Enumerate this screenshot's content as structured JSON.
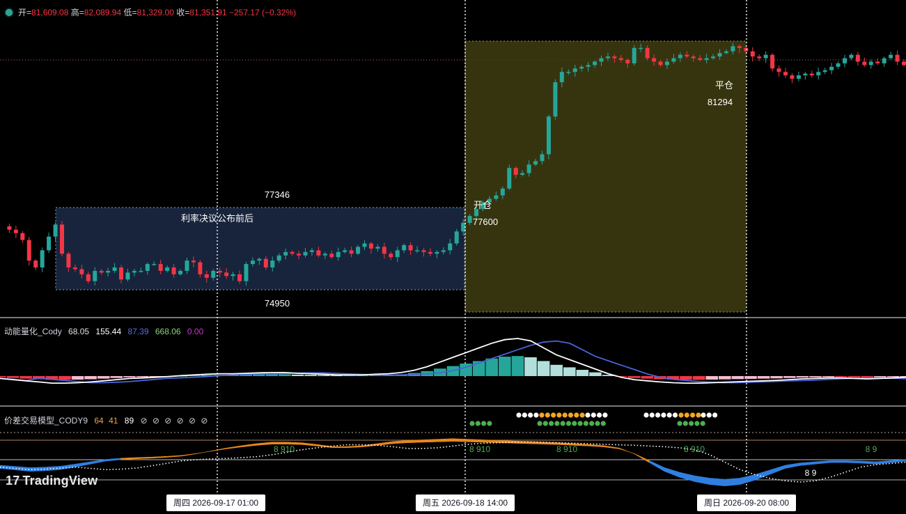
{
  "header": {
    "open_label": "开=",
    "open": "81,609.08",
    "high_label": "高=",
    "high": "82,089.94",
    "low_label": "低=",
    "low": "81,329.00",
    "close_label": "收=",
    "close": "81,351.91",
    "change": "−257.17 (−0.32%)"
  },
  "annotations": {
    "zone_top": "77346",
    "zone_title": "利率决议公布前后",
    "zone_bottom": "74950",
    "open_pos_label": "开仓",
    "open_pos_price": "77600",
    "close_pos_label": "平仓",
    "close_pos_price": "81294"
  },
  "indicator1": {
    "name": "动能量化_Cody",
    "v1": "68.05",
    "v2": "155.44",
    "v3": "87.39",
    "v4": "668.06",
    "v5": "0.00"
  },
  "indicator2": {
    "name": "价差交易模型_CODY9",
    "v1": "64",
    "v2": "41",
    "v3": "89",
    "flags": "⊘ ⊘ ⊘ ⊘ ⊘ ⊘",
    "label_a": "8 910",
    "label_b": "8 910",
    "label_c": "8 910",
    "label_d": "8 910",
    "label_e": "8 9",
    "label_f": "8 9"
  },
  "branding": {
    "logo_mark": "17",
    "logo_text": "TradingView"
  },
  "time_axis": {
    "label_1": "周四 2026-09-17   01:00",
    "label_2": "周五 2026-09-18   14:00",
    "label_3": "周日 2026-09-20   08:00"
  },
  "chart_data": {
    "type": "candlestick",
    "series": [
      {
        "name": "price",
        "values": [
          76800,
          76700,
          76600,
          76400,
          75800,
          75600,
          76100,
          76500,
          76850,
          76000,
          75600,
          75550,
          75400,
          75200,
          75500,
          75450,
          75500,
          75600,
          75250,
          75450,
          75500,
          75500,
          75700,
          75700,
          75500,
          75600,
          75400,
          75500,
          75800,
          75750,
          75400,
          75300,
          75500,
          75450,
          75350,
          75400,
          75200,
          75700,
          75800,
          75850,
          75600,
          75800,
          75950,
          76050,
          76000,
          75950,
          76050,
          76100,
          75950,
          76000,
          75900,
          76050,
          76100,
          76000,
          76200,
          76300,
          76150,
          76200,
          76000,
          75900,
          76100,
          76250,
          76100,
          76100,
          76050,
          76000,
          76050,
          76100,
          76300,
          76650,
          76900,
          77100,
          77300,
          77500,
          77600,
          77700,
          77900,
          78500,
          78300,
          78350,
          78600,
          78700,
          78900,
          80000,
          81000,
          81300,
          81300,
          81400,
          81450,
          81500,
          81600,
          81700,
          81750,
          81700,
          81650,
          81550,
          82000,
          82000,
          81700,
          81600,
          81500,
          81600,
          81700,
          81800,
          81750,
          81700,
          81650,
          81700,
          81750,
          81850,
          81900,
          82050,
          82000,
          81900,
          81750,
          81700,
          81800,
          81400,
          81300,
          81200,
          81100,
          81200,
          81250,
          81200,
          81300,
          81350,
          81450,
          81550,
          81700,
          81800,
          81600,
          81500,
          81600,
          81550,
          81700,
          81800,
          81600,
          81500
        ]
      },
      {
        "name": "momentum",
        "values": [
          -10,
          -15,
          -20,
          -25,
          -30,
          -30,
          -28,
          -25,
          -20,
          -15,
          -10,
          -8,
          -5,
          -2,
          2,
          5,
          8,
          10,
          10,
          12,
          14,
          15,
          15,
          12,
          10,
          8,
          5,
          5,
          5,
          8,
          10,
          15,
          25,
          40,
          60,
          80,
          100,
          120,
          140,
          155,
          160,
          150,
          120,
          90,
          70,
          50,
          30,
          10,
          -5,
          -15,
          -20,
          -25,
          -28,
          -30,
          -30,
          -28,
          -26,
          -24,
          -22,
          -20,
          -18,
          -15,
          -12,
          -10,
          -8,
          -8,
          -10,
          -12,
          -10,
          -8,
          -5
        ]
      },
      {
        "name": "spread",
        "values": [
          -30,
          -35,
          -40,
          -38,
          -34,
          -25,
          -15,
          -5,
          0,
          3,
          5,
          8,
          12,
          20,
          30,
          40,
          48,
          55,
          60,
          60,
          58,
          52,
          45,
          45,
          48,
          55,
          62,
          66,
          68,
          70,
          72,
          70,
          68,
          66,
          64,
          62,
          60,
          58,
          55,
          52,
          48,
          40,
          20,
          -10,
          -40,
          -60,
          -75,
          -85,
          -90,
          -85,
          -70,
          -50,
          -30,
          -20,
          -15,
          -10,
          -10,
          -12,
          -15,
          -10,
          -5
        ]
      }
    ],
    "zone_high": 77346,
    "zone_low": 74950,
    "entry": 77600,
    "exit": 81294
  }
}
